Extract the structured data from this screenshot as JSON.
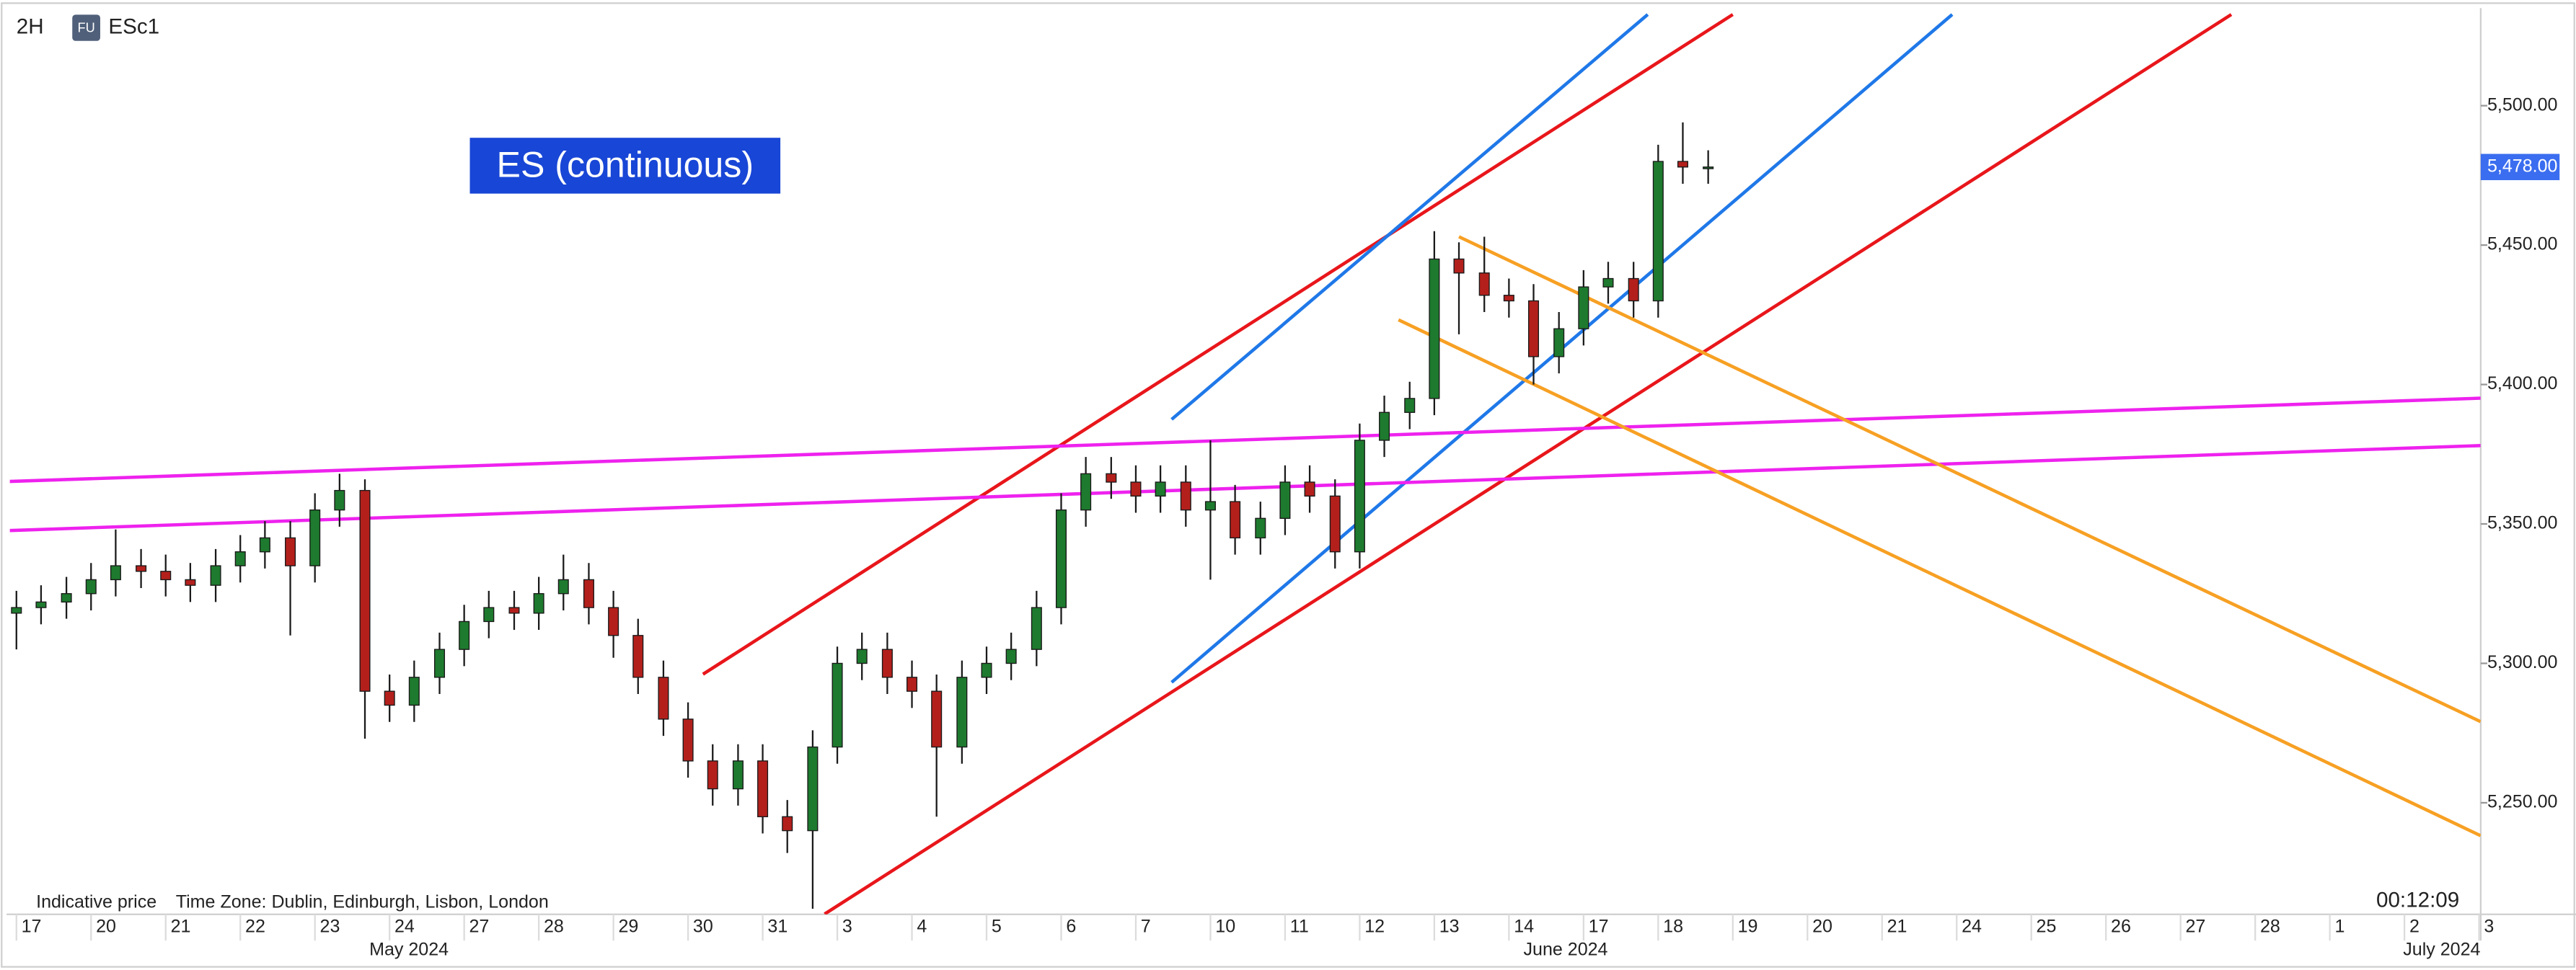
{
  "header": {
    "interval": "2H",
    "badge": "FU",
    "symbol": "ESc1"
  },
  "footer": {
    "note": "Indicative price",
    "timezone": "Time Zone: Dublin, Edinburgh, Lisbon, London",
    "clock": "00:12:09"
  },
  "chart_data": {
    "type": "candlestick",
    "title": "ES (continuous)",
    "up_color": "#1e7a2e",
    "down_color": "#b3201c",
    "x": [
      0,
      0.33,
      0.67,
      1,
      1.33,
      1.67,
      2,
      2.33,
      2.67,
      3,
      3.33,
      3.67,
      4,
      4.33,
      4.67,
      5,
      5.33,
      5.67,
      6,
      6.33,
      6.67,
      7,
      7.33,
      7.67,
      8,
      8.33,
      8.67,
      9,
      9.33,
      9.67,
      10,
      10.33,
      10.67,
      11,
      11.33,
      11.67,
      12,
      12.33,
      12.67,
      13,
      13.33,
      13.67,
      14,
      14.33,
      14.67,
      15,
      15.33,
      15.67,
      16,
      16.33,
      16.67,
      17,
      17.33,
      17.67,
      18,
      18.33,
      18.67,
      19,
      19.33,
      19.67,
      20,
      20.33,
      20.67,
      21,
      21.33,
      21.67,
      22,
      22.33,
      22.67
    ],
    "open": [
      5318,
      5320,
      5322,
      5325,
      5330,
      5335,
      5333,
      5330,
      5328,
      5335,
      5340,
      5345,
      5335,
      5355,
      5362,
      5290,
      5285,
      5295,
      5305,
      5315,
      5320,
      5318,
      5325,
      5330,
      5320,
      5310,
      5295,
      5280,
      5265,
      5255,
      5265,
      5245,
      5240,
      5270,
      5300,
      5305,
      5295,
      5290,
      5270,
      5295,
      5300,
      5305,
      5320,
      5355,
      5368,
      5365,
      5360,
      5365,
      5355,
      5358,
      5345,
      5352,
      5365,
      5360,
      5340,
      5380,
      5390,
      5395,
      5445,
      5440,
      5432,
      5430,
      5410,
      5420,
      5435,
      5438,
      5430,
      5480,
      5478
    ],
    "high": [
      5326,
      5328,
      5331,
      5336,
      5348,
      5341,
      5339,
      5336,
      5341,
      5346,
      5351,
      5351,
      5361,
      5368,
      5366,
      5296,
      5301,
      5311,
      5321,
      5326,
      5326,
      5331,
      5339,
      5336,
      5326,
      5316,
      5301,
      5286,
      5271,
      5271,
      5271,
      5251,
      5276,
      5306,
      5311,
      5311,
      5301,
      5296,
      5301,
      5306,
      5311,
      5326,
      5361,
      5374,
      5374,
      5371,
      5371,
      5371,
      5380,
      5364,
      5358,
      5371,
      5371,
      5366,
      5386,
      5396,
      5401,
      5455,
      5451,
      5453,
      5438,
      5436,
      5426,
      5441,
      5444,
      5444,
      5486,
      5494,
      5484
    ],
    "low": [
      5305,
      5314,
      5316,
      5319,
      5324,
      5327,
      5324,
      5322,
      5322,
      5329,
      5334,
      5310,
      5329,
      5349,
      5273,
      5279,
      5279,
      5289,
      5299,
      5309,
      5312,
      5312,
      5319,
      5314,
      5302,
      5289,
      5274,
      5259,
      5249,
      5249,
      5239,
      5232,
      5212,
      5264,
      5294,
      5289,
      5284,
      5245,
      5264,
      5289,
      5294,
      5299,
      5314,
      5349,
      5359,
      5354,
      5354,
      5349,
      5330,
      5339,
      5339,
      5346,
      5354,
      5334,
      5334,
      5374,
      5384,
      5389,
      5418,
      5426,
      5424,
      5400,
      5404,
      5414,
      5429,
      5424,
      5424,
      5472,
      5472
    ],
    "close": [
      5320,
      5322,
      5325,
      5330,
      5335,
      5333,
      5330,
      5328,
      5335,
      5340,
      5345,
      5335,
      5355,
      5362,
      5290,
      5285,
      5295,
      5305,
      5315,
      5320,
      5318,
      5325,
      5330,
      5320,
      5310,
      5295,
      5280,
      5265,
      5255,
      5265,
      5245,
      5240,
      5270,
      5300,
      5305,
      5295,
      5290,
      5270,
      5295,
      5300,
      5305,
      5320,
      5355,
      5368,
      5365,
      5360,
      5365,
      5355,
      5358,
      5345,
      5352,
      5365,
      5360,
      5340,
      5380,
      5390,
      5395,
      5445,
      5440,
      5432,
      5430,
      5410,
      5420,
      5435,
      5438,
      5430,
      5480,
      5478,
      5478
    ],
    "last_price": {
      "value": 5478,
      "label": "5,478.00"
    },
    "trendlines": [
      {
        "color": "#e8161b",
        "x1": 9.2,
        "y1": 5296.1,
        "x2": 23.0,
        "y2": 5532.7
      },
      {
        "color": "#e8161b",
        "x1": 10.83,
        "y1": 5210.1,
        "x2": 29.68,
        "y2": 5532.7
      },
      {
        "color": "#1f78e8",
        "x1": 15.48,
        "y1": 5387.5,
        "x2": 21.86,
        "y2": 5532.7
      },
      {
        "color": "#1f78e8",
        "x1": 15.48,
        "y1": 5293.2,
        "x2": 25.94,
        "y2": 5532.7
      },
      {
        "color": "#ee22ee",
        "x1": -0.13,
        "y1": 5365.2,
        "x2": 33.02,
        "y2": 5395.1
      },
      {
        "color": "#ee22ee",
        "x1": -0.13,
        "y1": 5347.6,
        "x2": 33.02,
        "y2": 5378.1
      },
      {
        "color": "#f7a023",
        "x1": 19.33,
        "y1": 5453.0,
        "x2": 33.02,
        "y2": 5279.1
      },
      {
        "color": "#f7a023",
        "x1": 18.52,
        "y1": 5423.2,
        "x2": 33.02,
        "y2": 5238.2
      }
    ],
    "xlim": [
      -0.13,
      33.02
    ],
    "xticks": [
      {
        "value": 0,
        "label": "17"
      },
      {
        "value": 1,
        "label": "20"
      },
      {
        "value": 2,
        "label": "21"
      },
      {
        "value": 3,
        "label": "22"
      },
      {
        "value": 4,
        "label": "23"
      },
      {
        "value": 5,
        "label": "24"
      },
      {
        "value": 6,
        "label": "27"
      },
      {
        "value": 7,
        "label": "28"
      },
      {
        "value": 8,
        "label": "29"
      },
      {
        "value": 9,
        "label": "30"
      },
      {
        "value": 10,
        "label": "31"
      },
      {
        "value": 11,
        "label": "3"
      },
      {
        "value": 12,
        "label": "4"
      },
      {
        "value": 13,
        "label": "5"
      },
      {
        "value": 14,
        "label": "6"
      },
      {
        "value": 15,
        "label": "7"
      },
      {
        "value": 16,
        "label": "10"
      },
      {
        "value": 17,
        "label": "11"
      },
      {
        "value": 18,
        "label": "12"
      },
      {
        "value": 19,
        "label": "13"
      },
      {
        "value": 20,
        "label": "14"
      },
      {
        "value": 21,
        "label": "17"
      },
      {
        "value": 22,
        "label": "18"
      },
      {
        "value": 23,
        "label": "19"
      },
      {
        "value": 24,
        "label": "20"
      },
      {
        "value": 25,
        "label": "21"
      },
      {
        "value": 26,
        "label": "24"
      },
      {
        "value": 27,
        "label": "25"
      },
      {
        "value": 28,
        "label": "26"
      },
      {
        "value": 29,
        "label": "27"
      },
      {
        "value": 30,
        "label": "28"
      },
      {
        "value": 31,
        "label": "1"
      },
      {
        "value": 32,
        "label": "2"
      },
      {
        "value": 33,
        "label": "3"
      }
    ],
    "months": [
      {
        "value": 5.26,
        "label": "May 2024"
      },
      {
        "value": 20.76,
        "label": "June 2024"
      },
      {
        "value": 32.5,
        "label": "July 2024"
      }
    ],
    "ylim": [
      5210,
      5535
    ],
    "yticks": [
      {
        "value": 5250,
        "label": "5,250.00"
      },
      {
        "value": 5300,
        "label": "5,300.00"
      },
      {
        "value": 5350,
        "label": "5,350.00"
      },
      {
        "value": 5400,
        "label": "5,400.00"
      },
      {
        "value": 5450,
        "label": "5,450.00"
      },
      {
        "value": 5500,
        "label": "5,500.00"
      }
    ]
  }
}
